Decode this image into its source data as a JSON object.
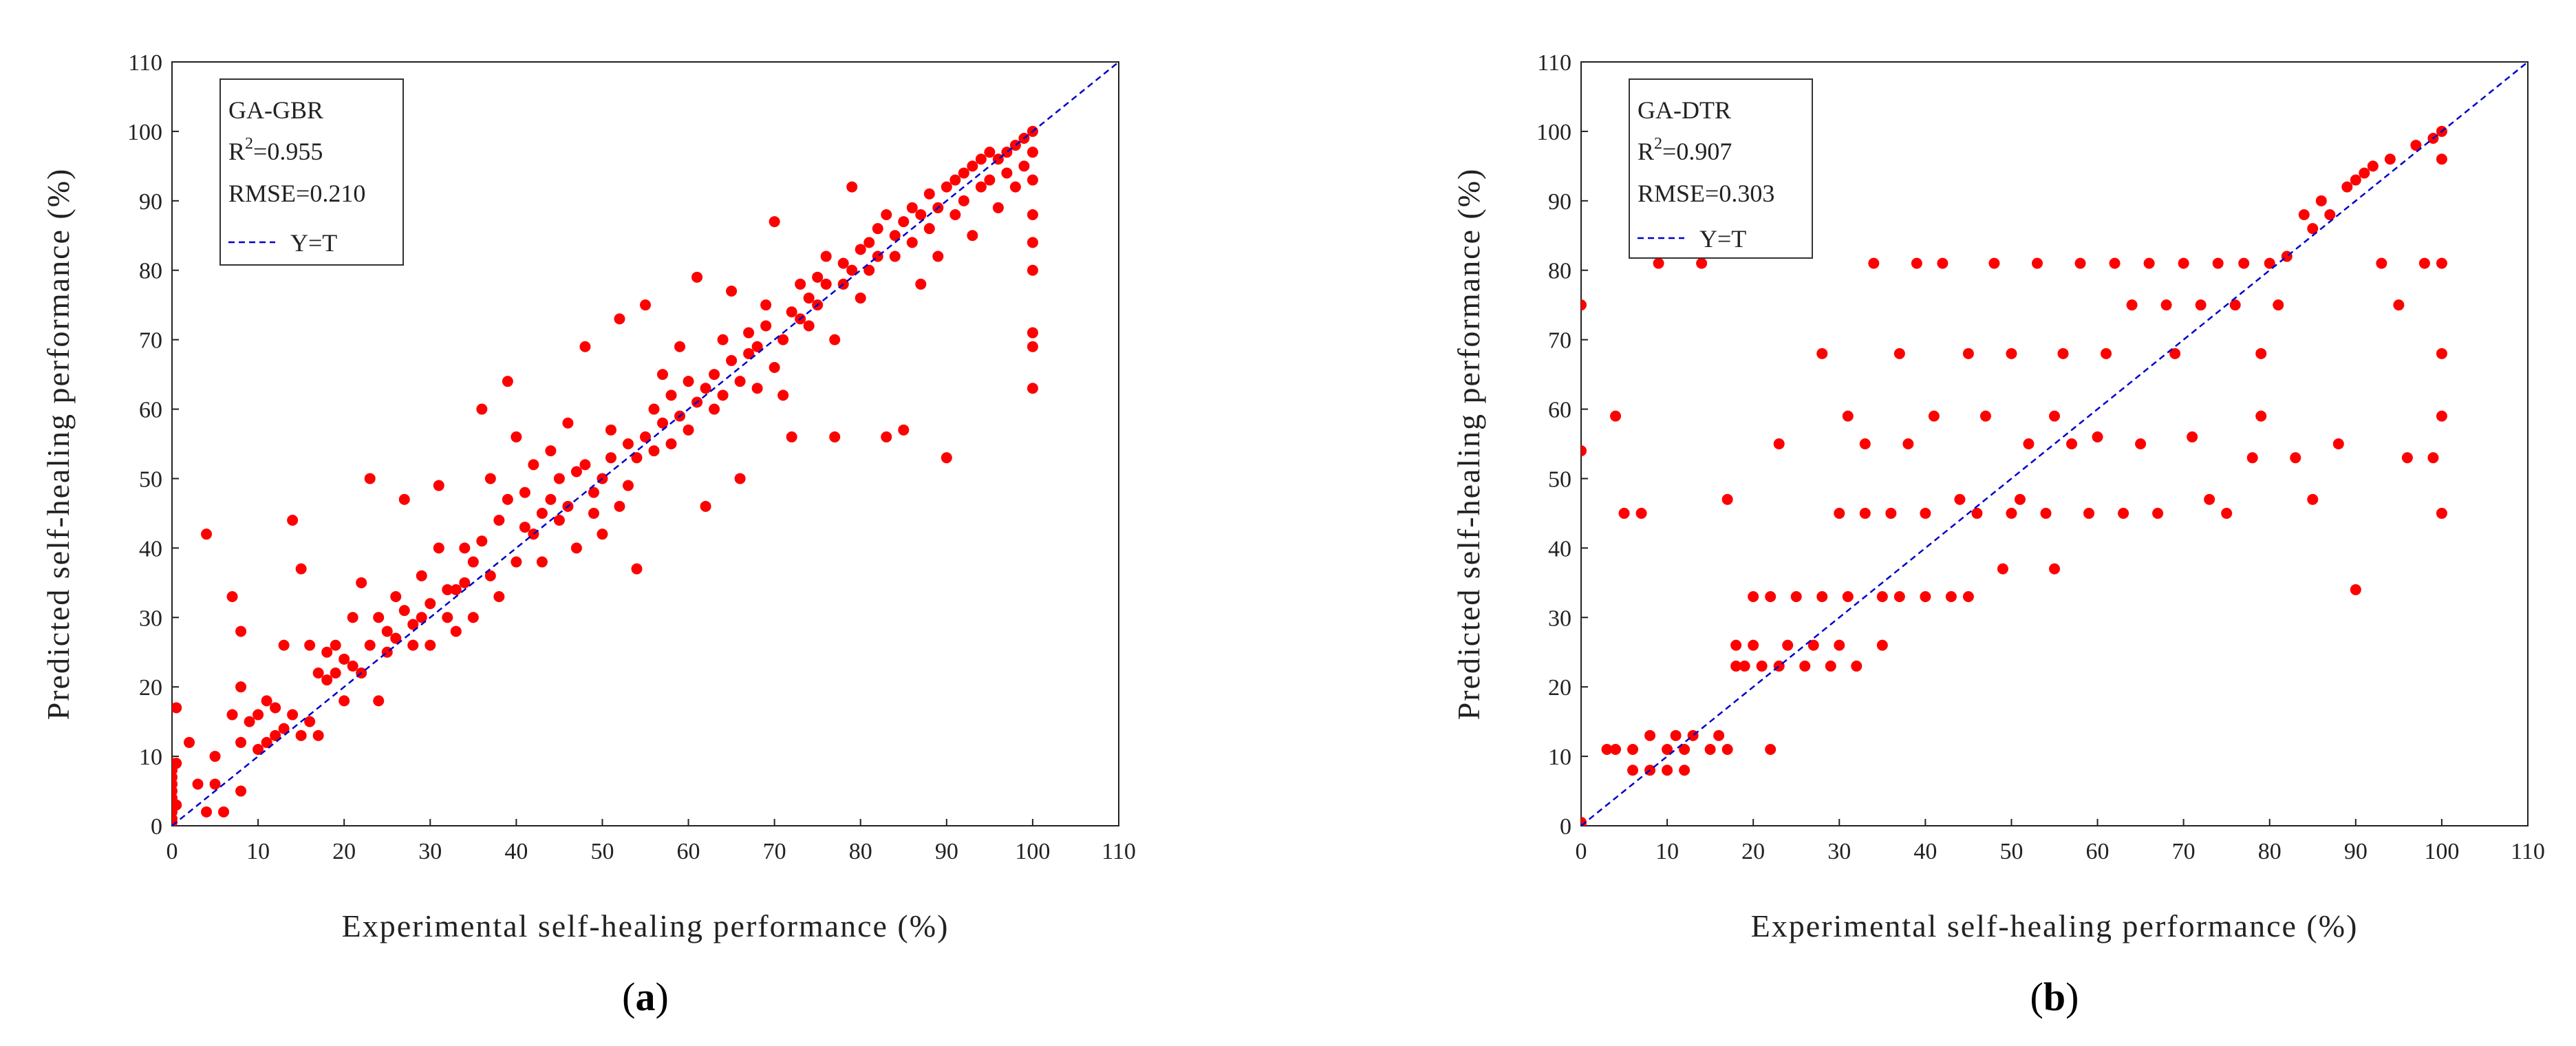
{
  "chart_data": [
    {
      "type": "scatter",
      "panel_label": "a",
      "model": "GA-GBR",
      "r2_label": "R",
      "r2_sup": "2",
      "r2_value": "=0.955",
      "rmse_label": "RMSE=0.210",
      "line_legend": "Y=T",
      "xlabel": "Experimental self-healing performance (%)",
      "ylabel": "Predicted self-healing performance (%)",
      "xlim": [
        0,
        110
      ],
      "ylim": [
        0,
        110
      ],
      "ticks": [
        0,
        10,
        20,
        30,
        40,
        50,
        60,
        70,
        80,
        90,
        100,
        110
      ],
      "point_color": "#ff0000",
      "line_color": "#0000cc",
      "series_note": "dense scatter around y=x (approx. 600 points)",
      "points": [
        [
          0,
          0.5
        ],
        [
          0,
          1
        ],
        [
          0,
          2
        ],
        [
          0,
          3
        ],
        [
          0,
          4
        ],
        [
          0,
          5
        ],
        [
          0,
          6
        ],
        [
          0,
          7
        ],
        [
          0,
          8
        ],
        [
          0,
          9
        ],
        [
          0.5,
          17
        ],
        [
          0.5,
          9
        ],
        [
          0.5,
          3
        ],
        [
          2,
          12
        ],
        [
          3,
          6
        ],
        [
          4,
          42
        ],
        [
          4,
          2
        ],
        [
          5,
          10
        ],
        [
          5,
          6
        ],
        [
          6,
          2
        ],
        [
          7,
          33
        ],
        [
          7,
          16
        ],
        [
          8,
          28
        ],
        [
          8,
          20
        ],
        [
          8,
          12
        ],
        [
          8,
          5
        ],
        [
          9,
          15
        ],
        [
          10,
          11
        ],
        [
          10,
          16
        ],
        [
          11,
          12
        ],
        [
          11,
          18
        ],
        [
          12,
          13
        ],
        [
          12,
          17
        ],
        [
          13,
          14
        ],
        [
          13,
          26
        ],
        [
          14,
          44
        ],
        [
          14,
          16
        ],
        [
          15,
          37
        ],
        [
          15,
          13
        ],
        [
          16,
          15
        ],
        [
          16,
          26
        ],
        [
          17,
          22
        ],
        [
          17,
          13
        ],
        [
          18,
          21
        ],
        [
          18,
          25
        ],
        [
          19,
          22
        ],
        [
          19,
          26
        ],
        [
          20,
          24
        ],
        [
          20,
          18
        ],
        [
          21,
          23
        ],
        [
          21,
          30
        ],
        [
          22,
          22
        ],
        [
          22,
          35
        ],
        [
          23,
          26
        ],
        [
          23,
          50
        ],
        [
          24,
          18
        ],
        [
          24,
          30
        ],
        [
          25,
          28
        ],
        [
          25,
          25
        ],
        [
          26,
          33
        ],
        [
          26,
          27
        ],
        [
          27,
          31
        ],
        [
          27,
          47
        ],
        [
          28,
          26
        ],
        [
          28,
          29
        ],
        [
          29,
          30
        ],
        [
          29,
          36
        ],
        [
          30,
          32
        ],
        [
          30,
          26
        ],
        [
          31,
          40
        ],
        [
          31,
          49
        ],
        [
          32,
          30
        ],
        [
          32,
          34
        ],
        [
          33,
          34
        ],
        [
          33,
          28
        ],
        [
          34,
          35
        ],
        [
          34,
          40
        ],
        [
          35,
          38
        ],
        [
          35,
          30
        ],
        [
          36,
          41
        ],
        [
          36,
          60
        ],
        [
          37,
          36
        ],
        [
          37,
          50
        ],
        [
          38,
          44
        ],
        [
          38,
          33
        ],
        [
          39,
          47
        ],
        [
          39,
          64
        ],
        [
          40,
          38
        ],
        [
          40,
          56
        ],
        [
          41,
          48
        ],
        [
          41,
          43
        ],
        [
          42,
          42
        ],
        [
          42,
          52
        ],
        [
          43,
          45
        ],
        [
          43,
          38
        ],
        [
          44,
          54
        ],
        [
          44,
          47
        ],
        [
          45,
          44
        ],
        [
          45,
          50
        ],
        [
          46,
          46
        ],
        [
          46,
          58
        ],
        [
          47,
          40
        ],
        [
          47,
          51
        ],
        [
          48,
          52
        ],
        [
          48,
          69
        ],
        [
          49,
          48
        ],
        [
          49,
          45
        ],
        [
          50,
          50
        ],
        [
          50,
          42
        ],
        [
          51,
          57
        ],
        [
          51,
          53
        ],
        [
          52,
          46
        ],
        [
          52,
          73
        ],
        [
          53,
          55
        ],
        [
          53,
          49
        ],
        [
          54,
          53
        ],
        [
          54,
          37
        ],
        [
          55,
          56
        ],
        [
          55,
          75
        ],
        [
          56,
          60
        ],
        [
          56,
          54
        ],
        [
          57,
          58
        ],
        [
          57,
          65
        ],
        [
          58,
          62
        ],
        [
          58,
          55
        ],
        [
          59,
          59
        ],
        [
          59,
          69
        ],
        [
          60,
          57
        ],
        [
          60,
          64
        ],
        [
          61,
          61
        ],
        [
          61,
          79
        ],
        [
          62,
          46
        ],
        [
          62,
          63
        ],
        [
          63,
          65
        ],
        [
          63,
          60
        ],
        [
          64,
          70
        ],
        [
          64,
          62
        ],
        [
          65,
          67
        ],
        [
          65,
          77
        ],
        [
          66,
          50
        ],
        [
          66,
          64
        ],
        [
          67,
          68
        ],
        [
          67,
          71
        ],
        [
          68,
          69
        ],
        [
          68,
          63
        ],
        [
          69,
          72
        ],
        [
          69,
          75
        ],
        [
          70,
          66
        ],
        [
          70,
          87
        ],
        [
          71,
          70
        ],
        [
          71,
          62
        ],
        [
          72,
          74
        ],
        [
          72,
          56
        ],
        [
          73,
          73
        ],
        [
          73,
          78
        ],
        [
          74,
          76
        ],
        [
          74,
          72
        ],
        [
          75,
          79
        ],
        [
          75,
          75
        ],
        [
          76,
          78
        ],
        [
          76,
          82
        ],
        [
          77,
          70
        ],
        [
          77,
          56
        ],
        [
          78,
          81
        ],
        [
          78,
          78
        ],
        [
          79,
          80
        ],
        [
          79,
          92
        ],
        [
          80,
          83
        ],
        [
          80,
          76
        ],
        [
          81,
          84
        ],
        [
          81,
          80
        ],
        [
          82,
          82
        ],
        [
          82,
          86
        ],
        [
          83,
          56
        ],
        [
          83,
          88
        ],
        [
          84,
          85
        ],
        [
          84,
          82
        ],
        [
          85,
          57
        ],
        [
          85,
          87
        ],
        [
          86,
          84
        ],
        [
          86,
          89
        ],
        [
          87,
          88
        ],
        [
          87,
          78
        ],
        [
          88,
          91
        ],
        [
          88,
          86
        ],
        [
          89,
          89
        ],
        [
          89,
          82
        ],
        [
          90,
          53
        ],
        [
          90,
          92
        ],
        [
          91,
          93
        ],
        [
          91,
          88
        ],
        [
          92,
          90
        ],
        [
          92,
          94
        ],
        [
          93,
          95
        ],
        [
          93,
          85
        ],
        [
          94,
          96
        ],
        [
          94,
          92
        ],
        [
          95,
          93
        ],
        [
          95,
          97
        ],
        [
          96,
          96
        ],
        [
          96,
          89
        ],
        [
          97,
          97
        ],
        [
          97,
          94
        ],
        [
          98,
          98
        ],
        [
          98,
          92
        ],
        [
          99,
          95
        ],
        [
          99,
          99
        ],
        [
          100,
          100
        ],
        [
          100,
          97
        ],
        [
          100,
          93
        ],
        [
          100,
          88
        ],
        [
          100,
          84
        ],
        [
          100,
          80
        ],
        [
          100,
          71
        ],
        [
          100,
          69
        ],
        [
          100,
          63
        ]
      ]
    },
    {
      "type": "scatter",
      "panel_label": "b",
      "model": "GA-DTR",
      "r2_label": "R",
      "r2_sup": "2",
      "r2_value": "=0.907",
      "rmse_label": "RMSE=0.303",
      "line_legend": "Y=T",
      "xlabel": "Experimental self-healing performance (%)",
      "ylabel": "Predicted self-healing performance (%)",
      "xlim": [
        0,
        110
      ],
      "ylim": [
        0,
        110
      ],
      "ticks": [
        0,
        10,
        20,
        30,
        40,
        50,
        60,
        70,
        80,
        90,
        100,
        110
      ],
      "point_color": "#ff0000",
      "line_color": "#0000cc",
      "series_note": "step-like clusters typical of a decision tree regressor",
      "points": [
        [
          0,
          0.5
        ],
        [
          0,
          0
        ],
        [
          0,
          75
        ],
        [
          0,
          54
        ],
        [
          3,
          11
        ],
        [
          4,
          11
        ],
        [
          4,
          59
        ],
        [
          5,
          45
        ],
        [
          6,
          11
        ],
        [
          6,
          8
        ],
        [
          7,
          45
        ],
        [
          8,
          8
        ],
        [
          8,
          13
        ],
        [
          9,
          81
        ],
        [
          10,
          11
        ],
        [
          10,
          8
        ],
        [
          11,
          13
        ],
        [
          12,
          8
        ],
        [
          12,
          11
        ],
        [
          13,
          13
        ],
        [
          14,
          81
        ],
        [
          15,
          11
        ],
        [
          16,
          13
        ],
        [
          17,
          11
        ],
        [
          17,
          47
        ],
        [
          18,
          26
        ],
        [
          18,
          23
        ],
        [
          19,
          23
        ],
        [
          20,
          26
        ],
        [
          20,
          33
        ],
        [
          21,
          23
        ],
        [
          22,
          33
        ],
        [
          22,
          11
        ],
        [
          23,
          55
        ],
        [
          23,
          23
        ],
        [
          24,
          26
        ],
        [
          25,
          33
        ],
        [
          26,
          23
        ],
        [
          27,
          26
        ],
        [
          28,
          68
        ],
        [
          28,
          33
        ],
        [
          29,
          23
        ],
        [
          30,
          26
        ],
        [
          30,
          45
        ],
        [
          31,
          59
        ],
        [
          31,
          33
        ],
        [
          32,
          23
        ],
        [
          33,
          45
        ],
        [
          33,
          55
        ],
        [
          34,
          81
        ],
        [
          35,
          33
        ],
        [
          35,
          26
        ],
        [
          36,
          45
        ],
        [
          37,
          68
        ],
        [
          37,
          33
        ],
        [
          38,
          55
        ],
        [
          39,
          81
        ],
        [
          40,
          45
        ],
        [
          40,
          33
        ],
        [
          41,
          59
        ],
        [
          42,
          81
        ],
        [
          43,
          33
        ],
        [
          44,
          47
        ],
        [
          45,
          68
        ],
        [
          45,
          33
        ],
        [
          46,
          45
        ],
        [
          47,
          59
        ],
        [
          48,
          81
        ],
        [
          49,
          37
        ],
        [
          50,
          45
        ],
        [
          50,
          68
        ],
        [
          51,
          47
        ],
        [
          52,
          55
        ],
        [
          53,
          81
        ],
        [
          54,
          45
        ],
        [
          55,
          59
        ],
        [
          55,
          37
        ],
        [
          56,
          68
        ],
        [
          57,
          55
        ],
        [
          58,
          81
        ],
        [
          59,
          45
        ],
        [
          60,
          56
        ],
        [
          61,
          68
        ],
        [
          62,
          81
        ],
        [
          63,
          45
        ],
        [
          64,
          75
        ],
        [
          65,
          55
        ],
        [
          66,
          81
        ],
        [
          67,
          45
        ],
        [
          68,
          75
        ],
        [
          69,
          68
        ],
        [
          70,
          81
        ],
        [
          71,
          56
        ],
        [
          72,
          75
        ],
        [
          73,
          47
        ],
        [
          74,
          81
        ],
        [
          75,
          45
        ],
        [
          76,
          75
        ],
        [
          77,
          81
        ],
        [
          78,
          53
        ],
        [
          79,
          68
        ],
        [
          79,
          59
        ],
        [
          80,
          81
        ],
        [
          81,
          75
        ],
        [
          82,
          82
        ],
        [
          83,
          53
        ],
        [
          84,
          88
        ],
        [
          85,
          86
        ],
        [
          85,
          47
        ],
        [
          86,
          90
        ],
        [
          87,
          88
        ],
        [
          88,
          55
        ],
        [
          89,
          92
        ],
        [
          90,
          34
        ],
        [
          90,
          93
        ],
        [
          91,
          94
        ],
        [
          92,
          95
        ],
        [
          93,
          81
        ],
        [
          94,
          96
        ],
        [
          95,
          75
        ],
        [
          96,
          53
        ],
        [
          97,
          98
        ],
        [
          98,
          81
        ],
        [
          99,
          99
        ],
        [
          99,
          53
        ],
        [
          100,
          100
        ],
        [
          100,
          96
        ],
        [
          100,
          81
        ],
        [
          100,
          68
        ],
        [
          100,
          59
        ],
        [
          100,
          45
        ]
      ]
    }
  ]
}
